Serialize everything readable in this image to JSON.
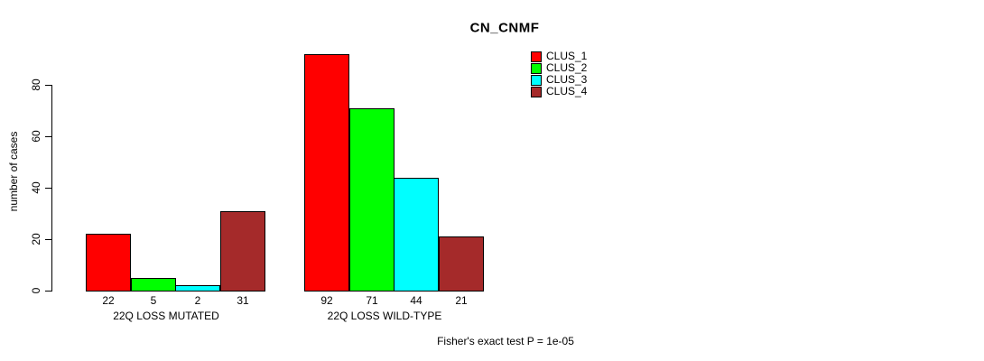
{
  "chart_data": {
    "type": "bar",
    "title": "CN_CNMF",
    "ylabel": "number of cases",
    "xlabel": "",
    "categories": [
      "22Q LOSS MUTATED",
      "22Q LOSS WILD-TYPE"
    ],
    "series": [
      {
        "name": "CLUS_1",
        "color": "#FF0000",
        "values": [
          22,
          92
        ]
      },
      {
        "name": "CLUS_2",
        "color": "#00FF00",
        "values": [
          5,
          71
        ]
      },
      {
        "name": "CLUS_3",
        "color": "#00FFFF",
        "values": [
          2,
          44
        ]
      },
      {
        "name": "CLUS_4",
        "color": "#A52A2A",
        "values": [
          31,
          21
        ]
      }
    ],
    "yticks": [
      0,
      20,
      40,
      60,
      80
    ],
    "ylim": [
      0,
      92
    ],
    "grid": false,
    "bar_value_labels": true,
    "legend_position": "top-right",
    "annotation": "Fisher's exact test P = 1e-05"
  }
}
